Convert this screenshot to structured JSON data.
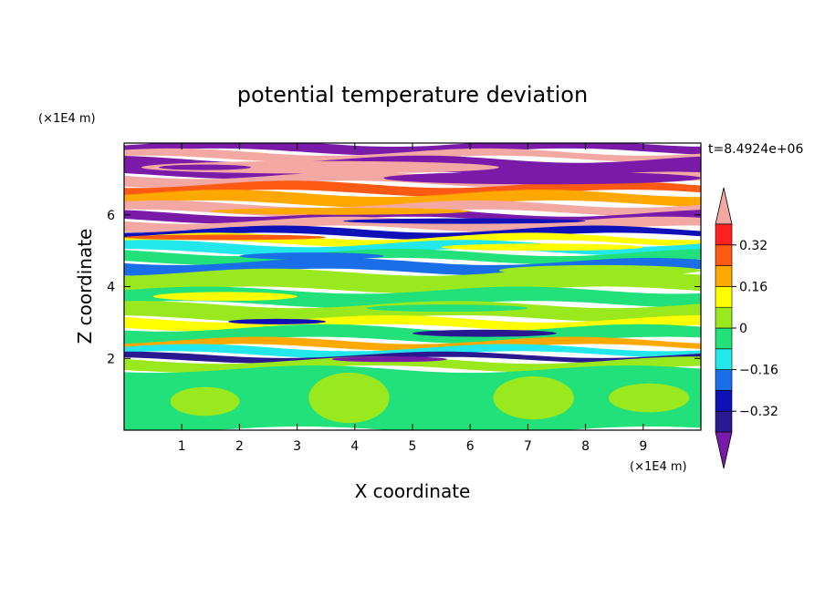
{
  "chart_data": {
    "type": "heatmap",
    "title": "potential temperature deviation",
    "xlabel": "X coordinate",
    "ylabel": "Z coordinate",
    "x_unit_label": "(×1E4 m)",
    "y_unit_label": "(×1E4 m)",
    "time_label": "t=8.4924e+06",
    "xlim": [
      0,
      10
    ],
    "ylim": [
      0,
      8
    ],
    "x_ticks": [
      1,
      2,
      3,
      4,
      5,
      6,
      7,
      8,
      9
    ],
    "x_tick_labels": [
      "1",
      "2",
      "3",
      "4",
      "5",
      "6",
      "7",
      "8",
      "9"
    ],
    "y_ticks": [
      2,
      4,
      6
    ],
    "y_tick_labels": [
      "2",
      "4",
      "6"
    ],
    "colorbar": {
      "levels": [
        -0.4,
        -0.32,
        -0.24,
        -0.16,
        -0.08,
        0,
        0.08,
        0.16,
        0.24,
        0.32,
        0.4
      ],
      "tick_values": [
        -0.32,
        -0.16,
        0,
        0.16,
        0.32
      ],
      "tick_labels": [
        "−0.32",
        "−0.16",
        "0",
        "0.16",
        "0.32"
      ],
      "colors": [
        "#7a1aa8",
        "#2a1890",
        "#1010b8",
        "#1a6ee8",
        "#22e8ec",
        "#22e07a",
        "#9ae81e",
        "#ffff00",
        "#ffa800",
        "#ff5a14",
        "#ff2020",
        "#f4a8a4"
      ],
      "extend": "both"
    },
    "bands": [
      {
        "z": [
          7.75,
          8.0
        ],
        "color": "#7a1aa8"
      },
      {
        "z": [
          7.55,
          7.75
        ],
        "color": "#f4a8a4"
      },
      {
        "z": [
          7.1,
          7.55
        ],
        "color": "#7a1aa8"
      },
      {
        "z": [
          6.85,
          7.1
        ],
        "color": "#f4a8a4"
      },
      {
        "z": [
          6.6,
          6.85
        ],
        "color": "#ff5a14"
      },
      {
        "z": [
          6.3,
          6.6
        ],
        "color": "#ffa800"
      },
      {
        "z": [
          6.05,
          6.3
        ],
        "color": "#f4a8a4"
      },
      {
        "z": [
          5.85,
          6.05
        ],
        "color": "#7a1aa8"
      },
      {
        "z": [
          5.6,
          5.85
        ],
        "color": "#f4a8a4"
      },
      {
        "z": [
          5.4,
          5.6
        ],
        "color": "#1010b8"
      },
      {
        "z": [
          5.2,
          5.4
        ],
        "color": "#ffff00"
      },
      {
        "z": [
          4.95,
          5.2
        ],
        "color": "#22e8ec"
      },
      {
        "z": [
          4.7,
          4.95
        ],
        "color": "#22e07a"
      },
      {
        "z": [
          4.4,
          4.7
        ],
        "color": "#1a6ee8"
      },
      {
        "z": [
          3.9,
          4.4
        ],
        "color": "#9ae81e"
      },
      {
        "z": [
          3.5,
          3.9
        ],
        "color": "#22e07a"
      },
      {
        "z": [
          3.1,
          3.5
        ],
        "color": "#9ae81e"
      },
      {
        "z": [
          2.85,
          3.1
        ],
        "color": "#ffff00"
      },
      {
        "z": [
          2.5,
          2.85
        ],
        "color": "#22e07a"
      },
      {
        "z": [
          2.3,
          2.5
        ],
        "color": "#ffa800"
      },
      {
        "z": [
          2.1,
          2.3
        ],
        "color": "#22e8ec"
      },
      {
        "z": [
          1.95,
          2.1
        ],
        "color": "#2a1890"
      },
      {
        "z": [
          1.7,
          1.95
        ],
        "color": "#9ae81e"
      },
      {
        "z": [
          0.0,
          1.7
        ],
        "color": "#22e07a"
      }
    ],
    "features": [
      {
        "x": [
          0.3,
          6.5
        ],
        "z": [
          7.15,
          7.5
        ],
        "color": "#f4a8a4"
      },
      {
        "x": [
          0.6,
          2.2
        ],
        "z": [
          7.25,
          7.4
        ],
        "color": "#7a1aa8"
      },
      {
        "x": [
          4.5,
          10.0
        ],
        "z": [
          6.85,
          7.2
        ],
        "color": "#7a1aa8"
      },
      {
        "x": [
          1.5,
          6.0
        ],
        "z": [
          6.0,
          6.2
        ],
        "color": "#ffa800"
      },
      {
        "x": [
          3.8,
          8.0
        ],
        "z": [
          5.75,
          5.9
        ],
        "color": "#1010b8"
      },
      {
        "x": [
          0.0,
          3.5
        ],
        "z": [
          5.3,
          5.45
        ],
        "color": "#ff5a14"
      },
      {
        "x": [
          5.5,
          9.0
        ],
        "z": [
          5.0,
          5.2
        ],
        "color": "#ffff00"
      },
      {
        "x": [
          2.0,
          4.5
        ],
        "z": [
          4.75,
          4.95
        ],
        "color": "#1a6ee8"
      },
      {
        "x": [
          6.5,
          10.0
        ],
        "z": [
          4.3,
          4.6
        ],
        "color": "#9ae81e"
      },
      {
        "x": [
          0.5,
          3.0
        ],
        "z": [
          3.6,
          3.85
        ],
        "color": "#ffff00"
      },
      {
        "x": [
          4.2,
          7.0
        ],
        "z": [
          3.3,
          3.5
        ],
        "color": "#22e07a"
      },
      {
        "x": [
          1.8,
          3.5
        ],
        "z": [
          2.95,
          3.1
        ],
        "color": "#1010b8"
      },
      {
        "x": [
          5.0,
          7.5
        ],
        "z": [
          2.6,
          2.8
        ],
        "color": "#2a1890"
      },
      {
        "x": [
          3.6,
          5.6
        ],
        "z": [
          1.9,
          2.05
        ],
        "color": "#7a1aa8"
      },
      {
        "x": [
          0.8,
          2.0
        ],
        "z": [
          0.4,
          1.2
        ],
        "color": "#9ae81e"
      },
      {
        "x": [
          3.2,
          4.6
        ],
        "z": [
          0.2,
          1.6
        ],
        "color": "#9ae81e"
      },
      {
        "x": [
          6.4,
          7.8
        ],
        "z": [
          0.3,
          1.5
        ],
        "color": "#9ae81e"
      },
      {
        "x": [
          8.4,
          9.8
        ],
        "z": [
          0.5,
          1.3
        ],
        "color": "#9ae81e"
      }
    ]
  }
}
